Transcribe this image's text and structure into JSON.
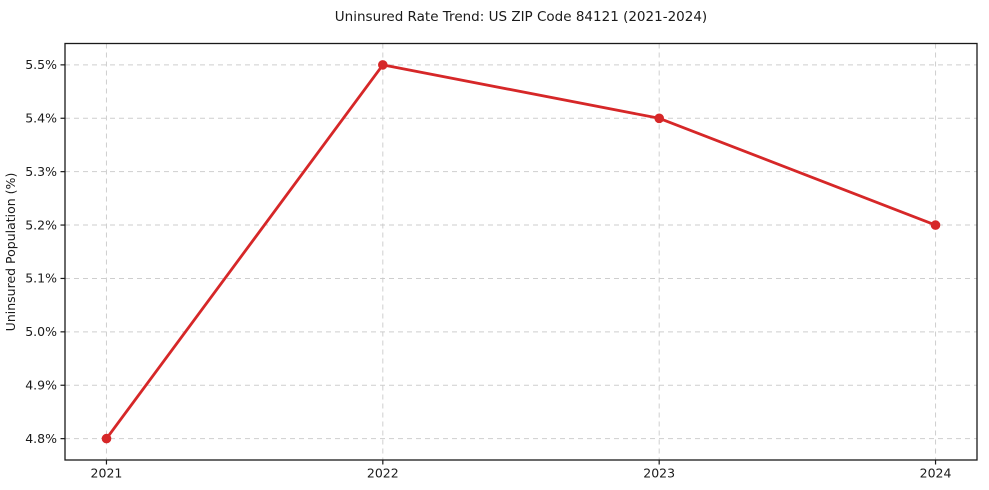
{
  "chart_data": {
    "type": "line",
    "title": "Uninsured Rate Trend: US ZIP Code 84121 (2021-2024)",
    "xlabel": "",
    "ylabel": "Uninsured Population (%)",
    "x": [
      2021,
      2022,
      2023,
      2024
    ],
    "values": [
      4.8,
      5.5,
      5.4,
      5.2
    ],
    "series_name": "Uninsured rate",
    "x_tick_labels": [
      "2021",
      "2022",
      "2023",
      "2024"
    ],
    "y_ticks": [
      4.8,
      4.9,
      5.0,
      5.1,
      5.2,
      5.3,
      5.4,
      5.5
    ],
    "y_tick_labels": [
      "4.8%",
      "4.9%",
      "5.0%",
      "5.1%",
      "5.2%",
      "5.3%",
      "5.4%",
      "5.5%"
    ],
    "xlim": [
      2020.85,
      2024.15
    ],
    "ylim": [
      4.76,
      5.54
    ],
    "grid": true,
    "grid_style": "dashed",
    "legend_position": "none",
    "colors": {
      "line": "#d62728",
      "marker": "#d62728",
      "grid": "#c9c9c9",
      "axis": "#1a1a1a",
      "text": "#1a1a1a",
      "background": "#ffffff"
    }
  }
}
